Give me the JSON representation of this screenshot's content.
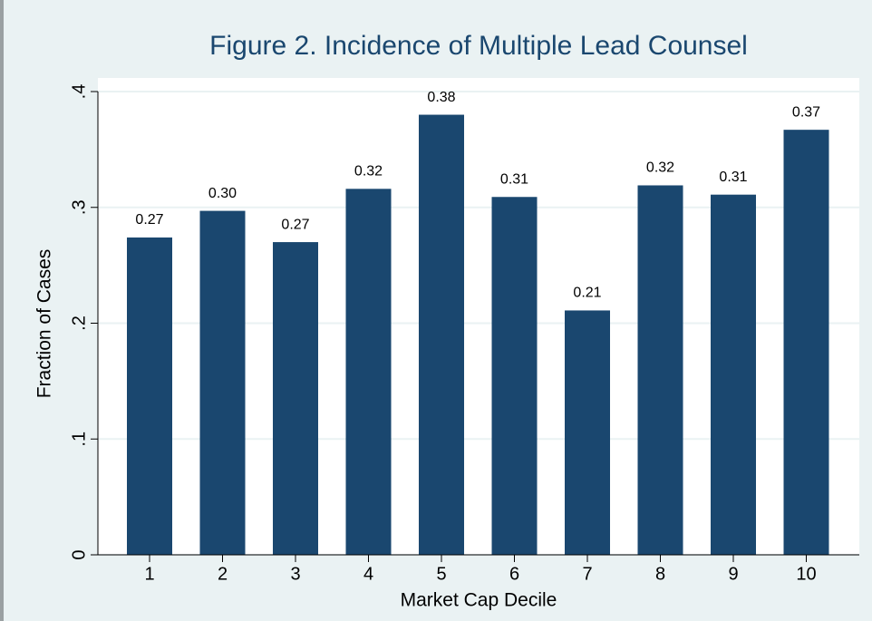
{
  "chart_data": {
    "type": "bar",
    "title": "Figure 2. Incidence of Multiple Lead Counsel",
    "x_label": "Market Cap Decile",
    "y_label": "Fraction of Cases",
    "categories": [
      "1",
      "2",
      "3",
      "4",
      "5",
      "6",
      "7",
      "8",
      "9",
      "10"
    ],
    "values": [
      0.274,
      0.297,
      0.27,
      0.316,
      0.38,
      0.309,
      0.211,
      0.319,
      0.311,
      0.367
    ],
    "value_labels": [
      "0.27",
      "0.30",
      "0.27",
      "0.32",
      "0.38",
      "0.31",
      "0.21",
      "0.32",
      "0.31",
      "0.37"
    ],
    "color": "#1a476f",
    "ylim": [
      0,
      0.4
    ],
    "yticks": [
      0,
      {
        "value": 0.1,
        "label": ".1"
      },
      {
        "value": 0.2,
        "label": ".2"
      },
      {
        "value": 0.3,
        "label": ".3"
      },
      {
        "value": 0.4,
        "label": ".4"
      }
    ],
    "grid": true
  }
}
